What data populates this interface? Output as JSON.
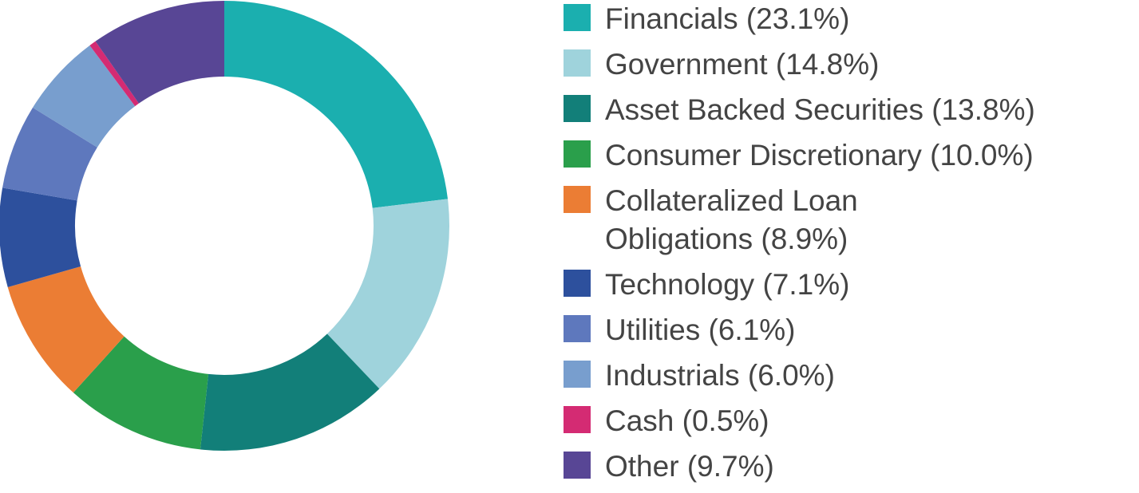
{
  "chart_data": {
    "type": "pie",
    "style": "donut",
    "legend_position": "right",
    "slices": [
      {
        "label": "Financials (23.1%)",
        "value": 23.1,
        "color": "#1BAFAF"
      },
      {
        "label": "Government (14.8%)",
        "value": 14.8,
        "color": "#9FD3DC"
      },
      {
        "label": "Asset Backed Securities (13.8%)",
        "value": 13.8,
        "color": "#127F79"
      },
      {
        "label": "Consumer Discretionary (10.0%)",
        "value": 10.0,
        "color": "#2A9F4B"
      },
      {
        "label": "Collateralized Loan Obligations (8.9%)",
        "value": 8.9,
        "color": "#EB7D34"
      },
      {
        "label": "Technology (7.1%)",
        "value": 7.1,
        "color": "#2D509D"
      },
      {
        "label": "Utilities (6.1%)",
        "value": 6.1,
        "color": "#5E78BD"
      },
      {
        "label": "Industrials (6.0%)",
        "value": 6.0,
        "color": "#789ECE"
      },
      {
        "label": "Cash (0.5%)",
        "value": 0.5,
        "color": "#D42B73"
      },
      {
        "label": "Other (9.7%)",
        "value": 9.7,
        "color": "#584695"
      }
    ]
  }
}
